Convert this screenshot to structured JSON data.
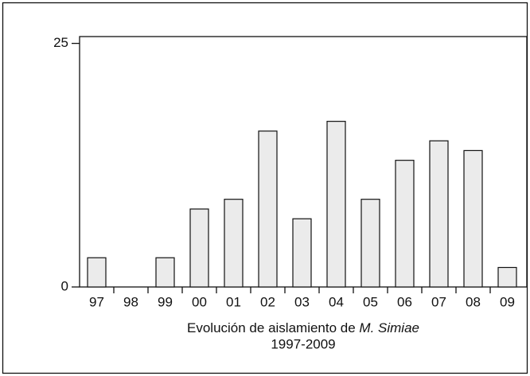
{
  "chart_data": {
    "type": "bar",
    "categories": [
      "97",
      "98",
      "99",
      "00",
      "01",
      "02",
      "03",
      "04",
      "05",
      "06",
      "07",
      "08",
      "09"
    ],
    "values": [
      3,
      0,
      3,
      8,
      9,
      16,
      7,
      17,
      9,
      13,
      15,
      14,
      2
    ],
    "color": "#ebebeb",
    "ylim": [
      0,
      25.7
    ],
    "yticks": [
      0,
      25
    ],
    "grid": false,
    "xlabel": [
      "Evolución de aislamiento de",
      "M. Simiae"
    ],
    "xlabel2": "1997-2009"
  }
}
